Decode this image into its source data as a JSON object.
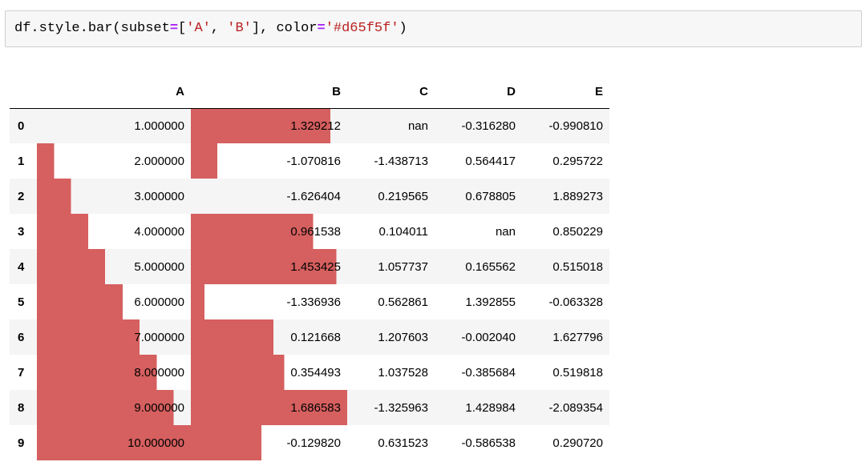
{
  "code": {
    "prefix": "df.style.bar",
    "open_paren": "(",
    "kw_subset": "subset",
    "eq1": "=",
    "list_open": "[",
    "str_a": "'A'",
    "comma1": ", ",
    "str_b": "'B'",
    "list_close": "]",
    "comma2": ", ",
    "kw_color": "color",
    "eq2": "=",
    "str_color": "'#d65f5f'",
    "close_paren": ")"
  },
  "table": {
    "bar_color": "#d65f5f",
    "bar_columns": [
      "A",
      "B"
    ],
    "columns": [
      "A",
      "B",
      "C",
      "D",
      "E"
    ],
    "rows": [
      {
        "index": "0",
        "A": "1.000000",
        "B": "1.329212",
        "C": "nan",
        "D": "-0.316280",
        "E": "-0.990810"
      },
      {
        "index": "1",
        "A": "2.000000",
        "B": "-1.070816",
        "C": "-1.438713",
        "D": "0.564417",
        "E": "0.295722"
      },
      {
        "index": "2",
        "A": "3.000000",
        "B": "-1.626404",
        "C": "0.219565",
        "D": "0.678805",
        "E": "1.889273"
      },
      {
        "index": "3",
        "A": "4.000000",
        "B": "0.961538",
        "C": "0.104011",
        "D": "nan",
        "E": "0.850229"
      },
      {
        "index": "4",
        "A": "5.000000",
        "B": "1.453425",
        "C": "1.057737",
        "D": "0.165562",
        "E": "0.515018"
      },
      {
        "index": "5",
        "A": "6.000000",
        "B": "-1.336936",
        "C": "0.562861",
        "D": "1.392855",
        "E": "-0.063328"
      },
      {
        "index": "6",
        "A": "7.000000",
        "B": "0.121668",
        "C": "1.207603",
        "D": "-0.002040",
        "E": "1.627796"
      },
      {
        "index": "7",
        "A": "8.000000",
        "B": "0.354493",
        "C": "1.037528",
        "D": "-0.385684",
        "E": "0.519818"
      },
      {
        "index": "8",
        "A": "9.000000",
        "B": "1.686583",
        "C": "-1.325963",
        "D": "1.428984",
        "E": "-2.089354"
      },
      {
        "index": "9",
        "A": "10.000000",
        "B": "-0.129820",
        "C": "0.631523",
        "D": "-0.586538",
        "E": "0.290720"
      }
    ]
  }
}
